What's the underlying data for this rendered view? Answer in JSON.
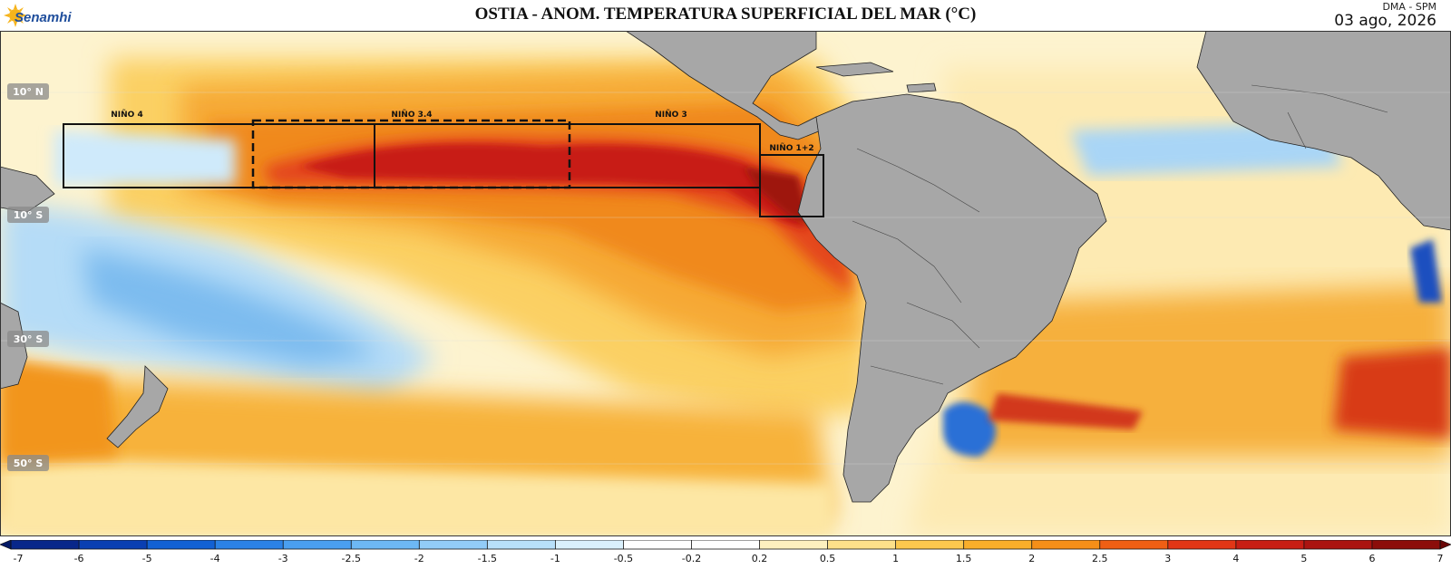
{
  "header": {
    "logo_text": "Senamhi",
    "title": "OSTIA - ANOM. TEMPERATURA SUPERFICIAL DEL MAR (°C)",
    "org": "DMA - SPM",
    "date": "03 ago, 2026"
  },
  "map": {
    "latitude_labels": [
      "10° N",
      "10° S",
      "30° S",
      "50° S"
    ],
    "regions": [
      {
        "label": "NIÑO 4",
        "style": "solid"
      },
      {
        "label": "NIÑO 3.4",
        "style": "dashed"
      },
      {
        "label": "NIÑO 3",
        "style": "solid"
      },
      {
        "label": "NIÑO 1+2",
        "style": "solid"
      }
    ]
  },
  "colorbar": {
    "ticks": [
      "-7",
      "-6",
      "-5",
      "-4",
      "-3",
      "-2.5",
      "-2",
      "-1.5",
      "-1",
      "-0.5",
      "-0.2",
      "0.2",
      "0.5",
      "1",
      "1.5",
      "2",
      "2.5",
      "3",
      "4",
      "5",
      "6",
      "7"
    ],
    "colors": [
      "#08278a",
      "#0a3fb2",
      "#1261d4",
      "#2b82e6",
      "#4a9ff0",
      "#6db8f4",
      "#92ccf7",
      "#b8e0fa",
      "#daf0fc",
      "#ffffff",
      "#ffffff",
      "#fdf0bf",
      "#fde08a",
      "#fcc84e",
      "#f9ae2a",
      "#f58f18",
      "#f05f14",
      "#e23616",
      "#c81e14",
      "#ab1410",
      "#8c0d0a"
    ],
    "under_color": "#051a66",
    "over_color": "#6a0606"
  },
  "palette": {
    "land": "#a7a7a7",
    "ocean_neutral": "#ffffff",
    "anomaly_strong_warm": "#d8260f",
    "anomaly_warm": "#f4921c",
    "anomaly_mild_warm": "#fcd36a",
    "anomaly_cool": "#8fc7f3"
  }
}
